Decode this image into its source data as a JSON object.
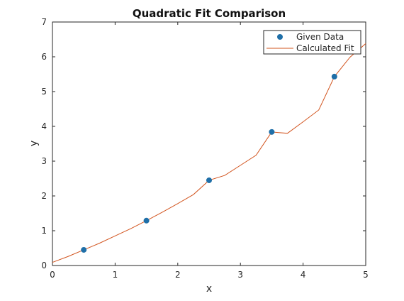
{
  "chart_data": {
    "type": "scatter",
    "title": "Quadratic Fit Comparison",
    "xlabel": "x",
    "ylabel": "y",
    "xlim": [
      0,
      5
    ],
    "ylim": [
      0,
      7
    ],
    "xticks": [
      0,
      1,
      2,
      3,
      4,
      5
    ],
    "yticks": [
      0,
      1,
      2,
      3,
      4,
      5,
      6,
      7
    ],
    "grid": false,
    "legend_position": "top-right",
    "series": [
      {
        "name": "Given Data",
        "kind": "points",
        "color": "#1f6fa8",
        "x": [
          0.5,
          1.5,
          2.5,
          3.5,
          4.5
        ],
        "y": [
          0.45,
          1.29,
          2.45,
          3.84,
          5.43
        ]
      },
      {
        "name": "Calculated Fit",
        "kind": "line",
        "color": "#d2541e",
        "x": [
          0,
          0.25,
          0.5,
          0.75,
          1,
          1.25,
          1.5,
          1.75,
          2,
          2.25,
          2.5,
          2.75,
          3,
          3.25,
          3.5,
          3.75,
          4,
          4.25,
          4.5,
          4.75,
          5
        ],
        "y": [
          0.09,
          0.26,
          0.45,
          0.64,
          0.85,
          1.06,
          1.29,
          1.53,
          1.78,
          2.04,
          2.45,
          2.59,
          2.88,
          3.17,
          3.84,
          3.8,
          4.13,
          4.47,
          5.43,
          5.99,
          6.38
        ]
      }
    ]
  }
}
